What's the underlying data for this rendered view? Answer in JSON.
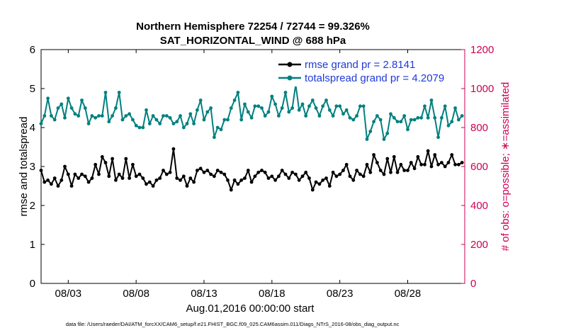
{
  "title_line1": "Northern Hemisphere 72254 / 72744 = 99.326%",
  "title_line2": "SAT_HORIZONTAL_WIND @ 688 hPa",
  "ylabel_left": "rmse and totalspread",
  "ylabel_right": "# of obs: o=possible; ∗=assimilated",
  "xlabel": "Aug.01,2016 00:00:00 start",
  "footer": "data file: /Users/raeder/DAI/ATM_forcXX/CAM6_setup/f.e21.FHIST_BGC.f09_025.CAM6assim.011/Diags_NTrS_2016-08/obs_diag_output.nc",
  "legend": {
    "rmse": "rmse grand pr = 2.8141",
    "spread": "totalspread grand pr = 4.2079"
  },
  "colors": {
    "rmse": "#000000",
    "spread": "#00807f",
    "obs": "#cc0055"
  },
  "chart_data": {
    "type": "line",
    "x_tick_labels": [
      "08/03",
      "08/08",
      "08/13",
      "08/18",
      "08/23",
      "08/28"
    ],
    "x_tick_days": [
      3,
      8,
      13,
      18,
      23,
      28
    ],
    "xlim": [
      1.0,
      32.2
    ],
    "y_left_ticks": [
      "0",
      "1",
      "2",
      "3",
      "4",
      "5",
      "6"
    ],
    "ylim_left": [
      0,
      6
    ],
    "y_right_ticks": [
      "0",
      "200",
      "400",
      "600",
      "800",
      "1000",
      "1200"
    ],
    "ylim_right": [
      0,
      1200
    ],
    "series": [
      {
        "name": "rmse",
        "axis": "left",
        "step_days": 0.25,
        "start_day": 1.0,
        "values": [
          2.9,
          2.6,
          2.65,
          2.55,
          2.7,
          2.5,
          2.65,
          3.0,
          2.8,
          2.5,
          2.8,
          2.7,
          2.8,
          2.75,
          2.6,
          2.7,
          3.05,
          2.8,
          3.25,
          3.1,
          2.75,
          3.2,
          2.65,
          2.8,
          2.7,
          3.2,
          2.7,
          3.05,
          2.75,
          2.8,
          2.7,
          2.55,
          2.6,
          2.5,
          2.65,
          2.7,
          2.9,
          2.8,
          2.85,
          3.45,
          2.7,
          2.65,
          2.75,
          2.5,
          2.7,
          2.6,
          2.9,
          2.95,
          2.85,
          2.9,
          2.8,
          2.75,
          2.9,
          2.85,
          2.8,
          2.65,
          2.4,
          2.65,
          2.55,
          2.65,
          2.7,
          2.9,
          2.6,
          2.75,
          2.85,
          2.9,
          2.85,
          2.7,
          2.75,
          2.65,
          2.75,
          2.9,
          2.8,
          2.7,
          2.85,
          2.8,
          2.65,
          2.75,
          2.85,
          2.7,
          2.4,
          2.6,
          2.55,
          2.65,
          2.7,
          2.5,
          2.85,
          2.75,
          2.8,
          2.9,
          3.05,
          2.75,
          2.65,
          2.9,
          2.8,
          2.75,
          3.05,
          2.85,
          3.3,
          3.1,
          2.9,
          2.8,
          3.2,
          2.85,
          3.25,
          2.85,
          3.05,
          2.9,
          2.9,
          3.1,
          2.95,
          3.25,
          3.05,
          3.05,
          3.4,
          3.0,
          3.3,
          3.05,
          3.1,
          3.0,
          3.1,
          3.3,
          3.05,
          3.05,
          3.1
        ]
      },
      {
        "name": "totalspread",
        "axis": "left",
        "step_days": 0.25,
        "start_day": 1.0,
        "values": [
          4.1,
          4.3,
          4.75,
          4.3,
          4.2,
          4.5,
          4.6,
          4.25,
          4.75,
          4.5,
          4.35,
          4.3,
          4.7,
          4.5,
          4.1,
          4.3,
          4.25,
          4.3,
          4.3,
          4.9,
          4.15,
          4.3,
          4.5,
          4.9,
          4.2,
          4.3,
          4.35,
          4.2,
          4.05,
          4.0,
          4.0,
          4.45,
          4.1,
          4.3,
          4.2,
          4.1,
          4.3,
          4.3,
          4.25,
          4.1,
          4.15,
          4.3,
          4.0,
          4.1,
          4.35,
          4.1,
          4.45,
          4.7,
          4.2,
          4.4,
          4.5,
          3.75,
          4.0,
          3.95,
          4.2,
          4.2,
          4.5,
          4.7,
          4.9,
          4.2,
          4.6,
          4.4,
          4.25,
          4.55,
          4.55,
          4.5,
          4.3,
          4.4,
          4.8,
          4.6,
          4.3,
          4.5,
          4.9,
          4.4,
          4.5,
          5.1,
          4.45,
          4.6,
          4.3,
          4.55,
          4.7,
          4.5,
          4.3,
          4.55,
          4.7,
          4.45,
          4.3,
          4.55,
          4.55,
          4.35,
          4.45,
          4.25,
          4.2,
          4.3,
          4.55,
          4.55,
          3.7,
          3.9,
          4.15,
          4.3,
          4.2,
          3.7,
          3.85,
          4.35,
          4.25,
          4.15,
          4.15,
          4.3,
          3.95,
          4.2,
          4.2,
          4.25,
          4.25,
          4.55,
          4.25,
          4.7,
          4.25,
          3.75,
          4.25,
          4.55,
          4.05,
          4.15,
          4.5,
          4.2,
          4.3
        ]
      }
    ]
  }
}
